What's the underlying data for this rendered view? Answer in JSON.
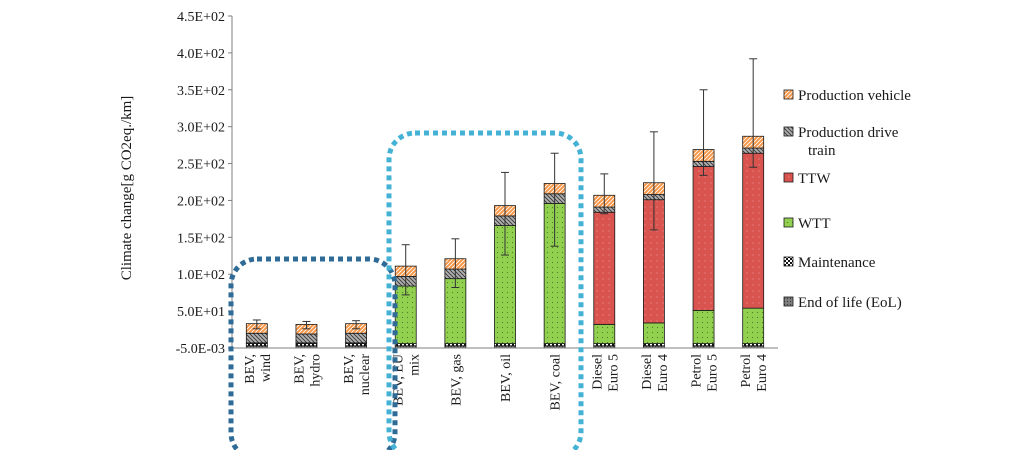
{
  "chart_data": {
    "type": "bar",
    "stacked": true,
    "ylabel": "Climate change[g CO2eq./km]",
    "yticks": [
      "-5.0E-03",
      "5.0E+01",
      "1.0E+02",
      "1.5E+02",
      "2.0E+02",
      "2.5E+02",
      "3.0E+02",
      "3.5E+02",
      "4.0E+02",
      "4.5E+02"
    ],
    "ylim": [
      0,
      450
    ],
    "categories": [
      [
        "BEV,",
        "wind"
      ],
      [
        "BEV,",
        "hydro"
      ],
      [
        "BEV,",
        "nuclear"
      ],
      [
        "BEV, EU",
        "mix"
      ],
      [
        "BEV,  gas"
      ],
      [
        "BEV, oil"
      ],
      [
        "BEV, coal"
      ],
      [
        "Diesel",
        "Euro 5"
      ],
      [
        "Diesel",
        "Euro 4"
      ],
      [
        "Petrol",
        "Euro 5"
      ],
      [
        "Petrol",
        "Euro 4"
      ]
    ],
    "series": [
      {
        "name": "End of life (EoL)",
        "color": "#7f7f7f",
        "pattern": "pat-eol",
        "values": [
          3,
          3,
          3,
          3,
          3,
          3,
          3,
          3,
          3,
          3,
          3
        ]
      },
      {
        "name": "Maintenance",
        "color": "#ffffff",
        "pattern": "pat-maint",
        "values": [
          3,
          3,
          3,
          3,
          3,
          3,
          3,
          3,
          3,
          3,
          3
        ]
      },
      {
        "name": "WTT",
        "color": "#92d050",
        "pattern": "pat-wtt",
        "values": [
          1,
          1,
          1,
          78,
          88,
          160,
          190,
          26,
          28,
          45,
          48
        ]
      },
      {
        "name": "TTW",
        "color": "#d9534f",
        "pattern": "pat-ttw",
        "values": [
          0,
          0,
          0,
          0,
          0,
          0,
          0,
          152,
          167,
          195,
          210
        ]
      },
      {
        "name": "Production drive train",
        "color": "#a6a6a6",
        "pattern": "pat-drive",
        "values": [
          13,
          12,
          13,
          13,
          13,
          13,
          13,
          7,
          7,
          7,
          7
        ]
      },
      {
        "name": "Production vehicle",
        "color": "#f79646",
        "pattern": "pat-prod",
        "values": [
          13,
          13,
          13,
          14,
          14,
          14,
          14,
          16,
          16,
          16,
          16
        ]
      }
    ],
    "error_bars": [
      [
        26,
        38
      ],
      [
        26,
        36
      ],
      [
        26,
        37
      ],
      [
        72,
        140
      ],
      [
        82,
        148
      ],
      [
        126,
        238
      ],
      [
        138,
        264
      ],
      [
        182,
        236
      ],
      [
        160,
        293
      ],
      [
        234,
        350
      ],
      [
        245,
        392
      ]
    ],
    "annotations": [
      "dotted box around low-carbon BEV group",
      "dotted box around fossil-electricity BEV group"
    ]
  }
}
